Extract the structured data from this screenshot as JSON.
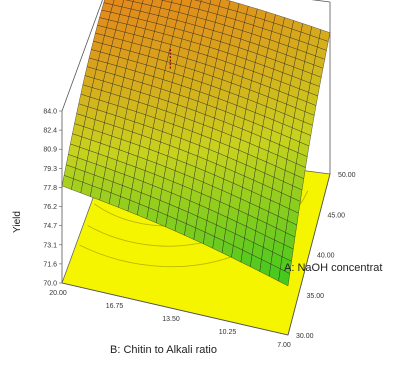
{
  "chart_data": {
    "type": "surface3d",
    "zlabel": "Yield",
    "xlabel": "A: NaOH concentrat",
    "ylabel": "B: Chitin to Alkali ratio",
    "x_range": [
      30.0,
      50.0
    ],
    "y_range": [
      7.0,
      20.0
    ],
    "z_range": [
      70.0,
      84.0
    ],
    "x_ticks": [
      "30.00",
      "35.00",
      "40.00",
      "45.00",
      "50.00"
    ],
    "y_ticks": [
      "7.00",
      "10.25",
      "13.50",
      "16.75",
      "20.00"
    ],
    "z_ticks": [
      "70.0",
      "71.6",
      "73.1",
      "74.7",
      "76.2",
      "77.8",
      "79.3",
      "80.9",
      "82.4",
      "84.0"
    ],
    "surface_corners": {
      "note_units": "Yield",
      "x30_y20": 77.9,
      "x30_y7": 74.0,
      "x50_y7": 81.5,
      "x50_y20": 84.0
    },
    "floor_contours": true,
    "grid": true,
    "colors": {
      "surface_low": "#3cc81e",
      "surface_mid": "#c8d21e",
      "surface_high": "#e87a1a",
      "mesh": "#1e1e1e",
      "floor": "#f5f500"
    }
  }
}
